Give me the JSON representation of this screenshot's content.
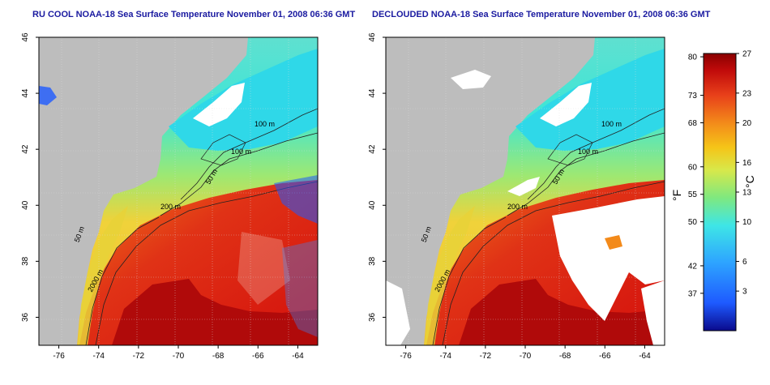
{
  "titles": {
    "left": "RU COOL NOAA-18 Sea Surface Temperature November 01, 2008 06:36 GMT",
    "right": "DECLOUDED NOAA-18 Sea Surface Temperature November 01, 2008 06:36 GMT"
  },
  "map": {
    "lon_range": [
      -77,
      -63
    ],
    "lat_range": [
      35,
      46
    ],
    "lon_ticks": [
      "-76",
      "-74",
      "-72",
      "-70",
      "-68",
      "-66",
      "-64"
    ],
    "lat_ticks": [
      "36",
      "38",
      "40",
      "42",
      "44",
      "46"
    ],
    "contour_labels": [
      "100 m",
      "100 m",
      "50 m",
      "200 m",
      "50 m",
      "2000 m"
    ]
  },
  "colorbar": {
    "fahrenheit_ticks": [
      "80",
      "73",
      "68",
      "60",
      "55",
      "50",
      "42",
      "37"
    ],
    "celsius_ticks": [
      "27",
      "23",
      "20",
      "16",
      "13",
      "10",
      "6",
      "3"
    ],
    "fahrenheit_unit": "°F",
    "celsius_unit": "°C",
    "colors": [
      "#0a0a8c",
      "#1e5aff",
      "#2ea6ff",
      "#3ee6e6",
      "#7fe87f",
      "#d8e84a",
      "#f5c518",
      "#f38a1a",
      "#e8401a",
      "#c00a0a",
      "#8a0000"
    ]
  }
}
